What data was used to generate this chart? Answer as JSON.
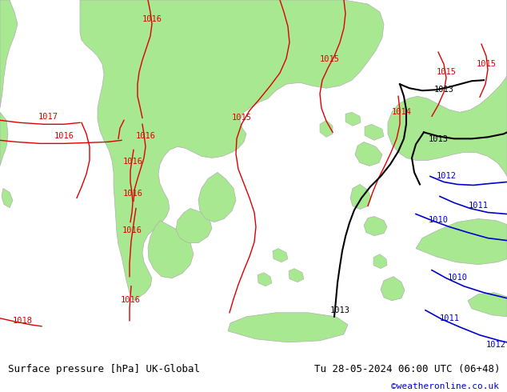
{
  "title_left": "Surface pressure [hPa] UK-Global",
  "title_right": "Tu 28-05-2024 06:00 UTC (06+48)",
  "copyright": "©weatheronline.co.uk",
  "bg_color": "#c8c8c8",
  "land_green_color": "#a8e890",
  "land_gray_color": "#b0b0b0",
  "sea_color": "#c8c8c8",
  "footer_bg": "#ffffff",
  "isobar_red_color": "#dd0000",
  "isobar_black_color": "#000000",
  "isobar_blue_color": "#0000cc",
  "label_fontsize": 7.5,
  "footer_fontsize": 9,
  "copyright_fontsize": 8,
  "copyright_color": "#0000cc"
}
